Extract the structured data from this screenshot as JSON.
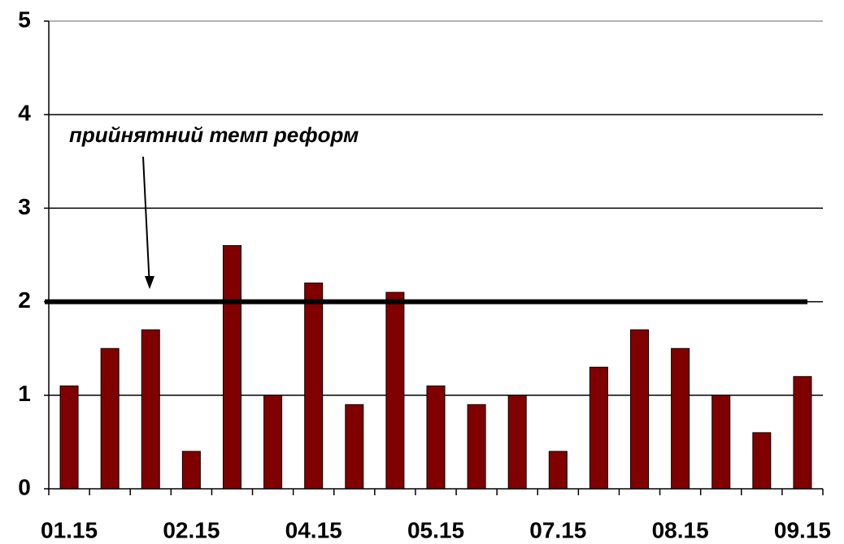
{
  "chart_data": {
    "type": "bar",
    "categories": [
      "01.15",
      null,
      null,
      "02.15",
      null,
      null,
      "04.15",
      null,
      null,
      "05.15",
      null,
      null,
      "07.15",
      null,
      null,
      "08.15",
      null,
      null,
      "09.15"
    ],
    "values": [
      1.1,
      1.5,
      1.7,
      0.4,
      2.6,
      1.0,
      2.2,
      0.9,
      2.1,
      1.1,
      0.9,
      1.0,
      0.4,
      1.3,
      1.7,
      1.5,
      1.0,
      0.6,
      1.2
    ],
    "color": "#800000",
    "ylim": [
      0,
      5
    ],
    "yticks": [
      0,
      1,
      2,
      3,
      4,
      5
    ],
    "grid": true,
    "reference_line": 2,
    "annotation": "прийнятний темп реформ"
  }
}
